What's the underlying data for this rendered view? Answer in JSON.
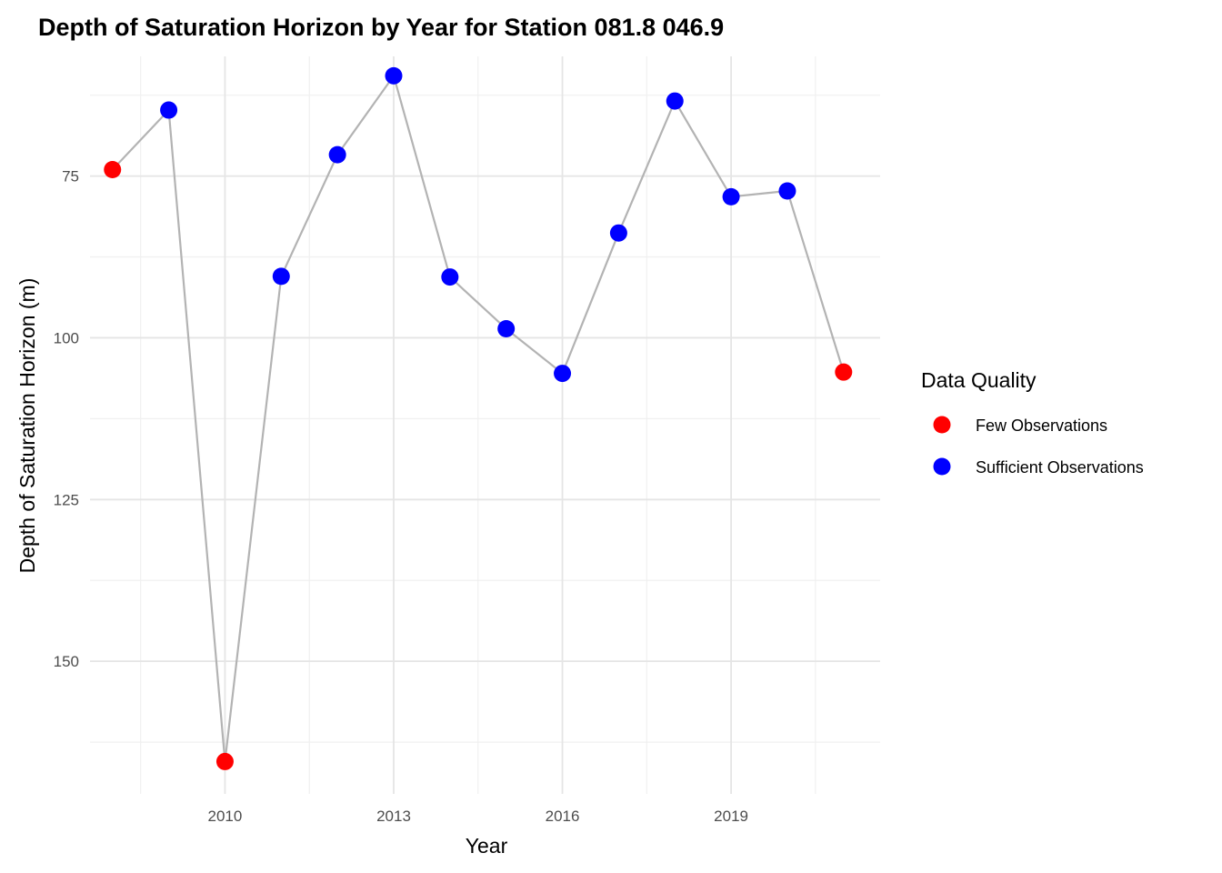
{
  "chart_data": {
    "type": "line",
    "title": "Depth of Saturation Horizon by Year for Station 081.8 046.9",
    "xlabel": "Year",
    "ylabel": "Depth of Saturation Horizon (m)",
    "y_reversed": true,
    "xlim": [
      2007.6,
      2021.65
    ],
    "ylim": [
      56.5,
      170.5
    ],
    "x_ticks": [
      2010,
      2013,
      2016,
      2019
    ],
    "x_minor_ticks": [
      2008.5,
      2011.5,
      2014.5,
      2017.5,
      2020.5
    ],
    "y_ticks": [
      75,
      100,
      125,
      150
    ],
    "y_minor_ticks": [
      62.5,
      87.5,
      112.5,
      137.5,
      162.5
    ],
    "grid": true,
    "line_color": "#b3b3b3",
    "legend": {
      "title": "Data Quality",
      "position": "right",
      "entries": [
        {
          "label": "Few Observations",
          "color": "#ff0000"
        },
        {
          "label": "Sufficient Observations",
          "color": "#0000ff"
        }
      ]
    },
    "points": [
      {
        "x": 2008,
        "y": 74.0,
        "quality": "Few Observations"
      },
      {
        "x": 2009,
        "y": 64.8,
        "quality": "Sufficient Observations"
      },
      {
        "x": 2010,
        "y": 165.5,
        "quality": "Few Observations"
      },
      {
        "x": 2011,
        "y": 90.5,
        "quality": "Sufficient Observations"
      },
      {
        "x": 2012,
        "y": 71.7,
        "quality": "Sufficient Observations"
      },
      {
        "x": 2013,
        "y": 59.5,
        "quality": "Sufficient Observations"
      },
      {
        "x": 2014,
        "y": 90.6,
        "quality": "Sufficient Observations"
      },
      {
        "x": 2015,
        "y": 98.6,
        "quality": "Sufficient Observations"
      },
      {
        "x": 2016,
        "y": 105.5,
        "quality": "Sufficient Observations"
      },
      {
        "x": 2017,
        "y": 83.8,
        "quality": "Sufficient Observations"
      },
      {
        "x": 2018,
        "y": 63.4,
        "quality": "Sufficient Observations"
      },
      {
        "x": 2019,
        "y": 78.2,
        "quality": "Sufficient Observations"
      },
      {
        "x": 2020,
        "y": 77.3,
        "quality": "Sufficient Observations"
      },
      {
        "x": 2021,
        "y": 105.3,
        "quality": "Few Observations"
      }
    ]
  }
}
